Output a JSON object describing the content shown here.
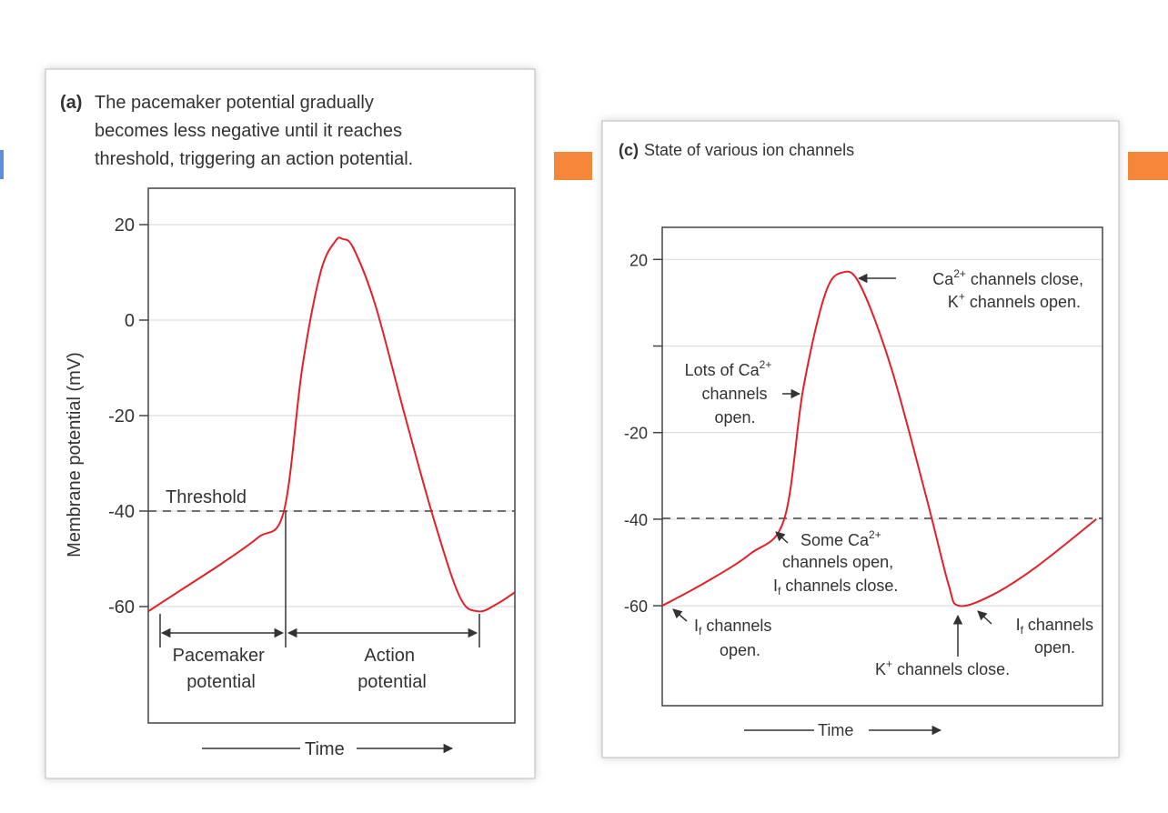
{
  "colors": {
    "curve": "#e3202a",
    "accent_bar": "#f6863a",
    "frame": "#555555"
  },
  "panel_a": {
    "label": "(a)",
    "title_lines": [
      "The pacemaker potential gradually",
      "becomes less negative until it reaches",
      "threshold, triggering an action potential."
    ],
    "ylabel": "Membrane potential (mV)",
    "xlabel": "Time",
    "threshold_label": "Threshold",
    "phase_pacemaker": [
      "Pacemaker",
      "potential"
    ],
    "phase_action": [
      "Action",
      "potential"
    ]
  },
  "panel_c": {
    "label": "(c)",
    "title": "State of various ion channels",
    "xlabel": "Time",
    "ann_peak": {
      "a": "Ca",
      "a_sup": "2+",
      "b": " channels close,",
      "c": "K",
      "c_sup": "+",
      "d": " channels open."
    },
    "ann_lots": {
      "a": "Lots of Ca",
      "a_sup": "2+",
      "b": "channels",
      "c": "open."
    },
    "ann_some": {
      "a": "Some Ca",
      "a_sup": "2+",
      "b": "channels open,",
      "c": "I",
      "c_sub": "f",
      "d": " channels close."
    },
    "ann_if_open_1": {
      "a": "I",
      "a_sub": "f",
      "b": " channels",
      "c": "open."
    },
    "ann_if_open_2": {
      "a": "I",
      "a_sub": "f",
      "b": " channels",
      "c": "open."
    },
    "ann_k_close": {
      "a": "K",
      "a_sup": "+",
      "b": " channels close."
    }
  },
  "chart_data": [
    {
      "type": "line",
      "title": "The pacemaker potential gradually becomes less negative until it reaches threshold, triggering an action potential.",
      "xlabel": "Time",
      "ylabel": "Membrane potential (mV)",
      "ylim": [
        -80,
        28
      ],
      "yticks": [
        20,
        0,
        -20,
        -40,
        -60
      ],
      "ytick_labels": [
        "20",
        "0",
        "-20",
        "-40",
        "-60"
      ],
      "grid": true,
      "threshold": -40,
      "x": [
        0,
        10,
        20,
        30,
        37,
        42,
        47,
        51,
        53,
        56,
        62,
        70,
        78,
        85,
        90,
        95,
        100
      ],
      "y": [
        -61,
        -56,
        -51,
        -45.5,
        -40,
        -10,
        10,
        16.5,
        17,
        15,
        3,
        -20,
        -42,
        -58,
        -61,
        -59.5,
        -57
      ]
    },
    {
      "type": "line",
      "title": "State of various ion channels",
      "xlabel": "Time",
      "ylim": [
        -82,
        27
      ],
      "yticks": [
        20,
        0,
        -20,
        -40,
        -60
      ],
      "ytick_labels": [
        "20",
        "",
        "-20",
        "-40",
        "-60"
      ],
      "grid": true,
      "threshold": -40,
      "x": [
        0,
        10,
        20,
        27.7,
        32,
        37,
        41,
        45,
        52,
        60,
        65,
        67.4,
        75,
        85,
        98.6
      ],
      "y": [
        -60,
        -54.5,
        -48,
        -40,
        -10,
        12,
        17,
        14,
        -5,
        -35,
        -55,
        -60,
        -57.5,
        -51,
        -40
      ]
    }
  ]
}
